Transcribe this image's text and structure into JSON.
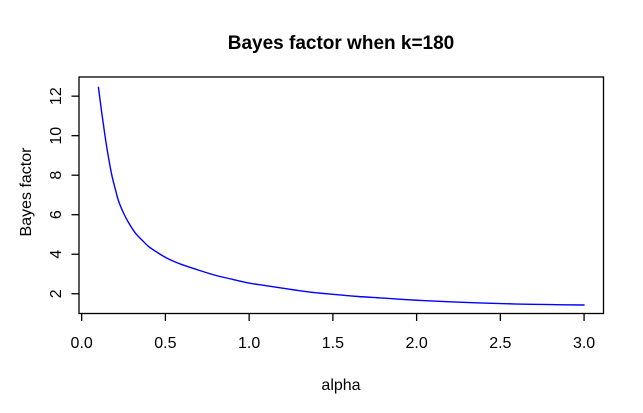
{
  "colors": {
    "background": "#ffffff",
    "axis": "#000000",
    "text": "#000000",
    "curve": "#0000ff"
  },
  "chart_data": {
    "type": "line",
    "title": "Bayes factor when k=180",
    "xlabel": "alpha",
    "ylabel": "Bayes factor",
    "x_tick_labels": [
      "0.0",
      "0.5",
      "1.0",
      "1.5",
      "2.0",
      "2.5",
      "3.0"
    ],
    "x_tick_values": [
      0,
      0.5,
      1,
      1.5,
      2,
      2.5,
      3
    ],
    "y_tick_labels": [
      "2",
      "4",
      "6",
      "8",
      "10",
      "12"
    ],
    "y_tick_values": [
      2,
      4,
      6,
      8,
      10,
      12
    ],
    "xlim": [
      -0.016,
      3.116
    ],
    "ylim": [
      1.0,
      12.97
    ],
    "grid": false,
    "legend": "none",
    "series": [
      {
        "name": "Bayes factor",
        "color": "#0000ff",
        "x": [
          0.1,
          0.12,
          0.14,
          0.16,
          0.18,
          0.2,
          0.22,
          0.25,
          0.28,
          0.32,
          0.36,
          0.4,
          0.45,
          0.5,
          0.55,
          0.6,
          0.7,
          0.8,
          0.9,
          1.0,
          1.1,
          1.2,
          1.35,
          1.5,
          1.65,
          1.8,
          2.0,
          2.2,
          2.4,
          2.6,
          2.8,
          3.0
        ],
        "y": [
          12.45,
          11.15,
          9.95,
          8.9,
          8.0,
          7.32,
          6.7,
          6.08,
          5.6,
          5.08,
          4.72,
          4.39,
          4.1,
          3.84,
          3.64,
          3.47,
          3.19,
          2.93,
          2.73,
          2.54,
          2.41,
          2.28,
          2.1,
          1.97,
          1.86,
          1.78,
          1.67,
          1.59,
          1.53,
          1.48,
          1.45,
          1.43
        ]
      }
    ]
  }
}
